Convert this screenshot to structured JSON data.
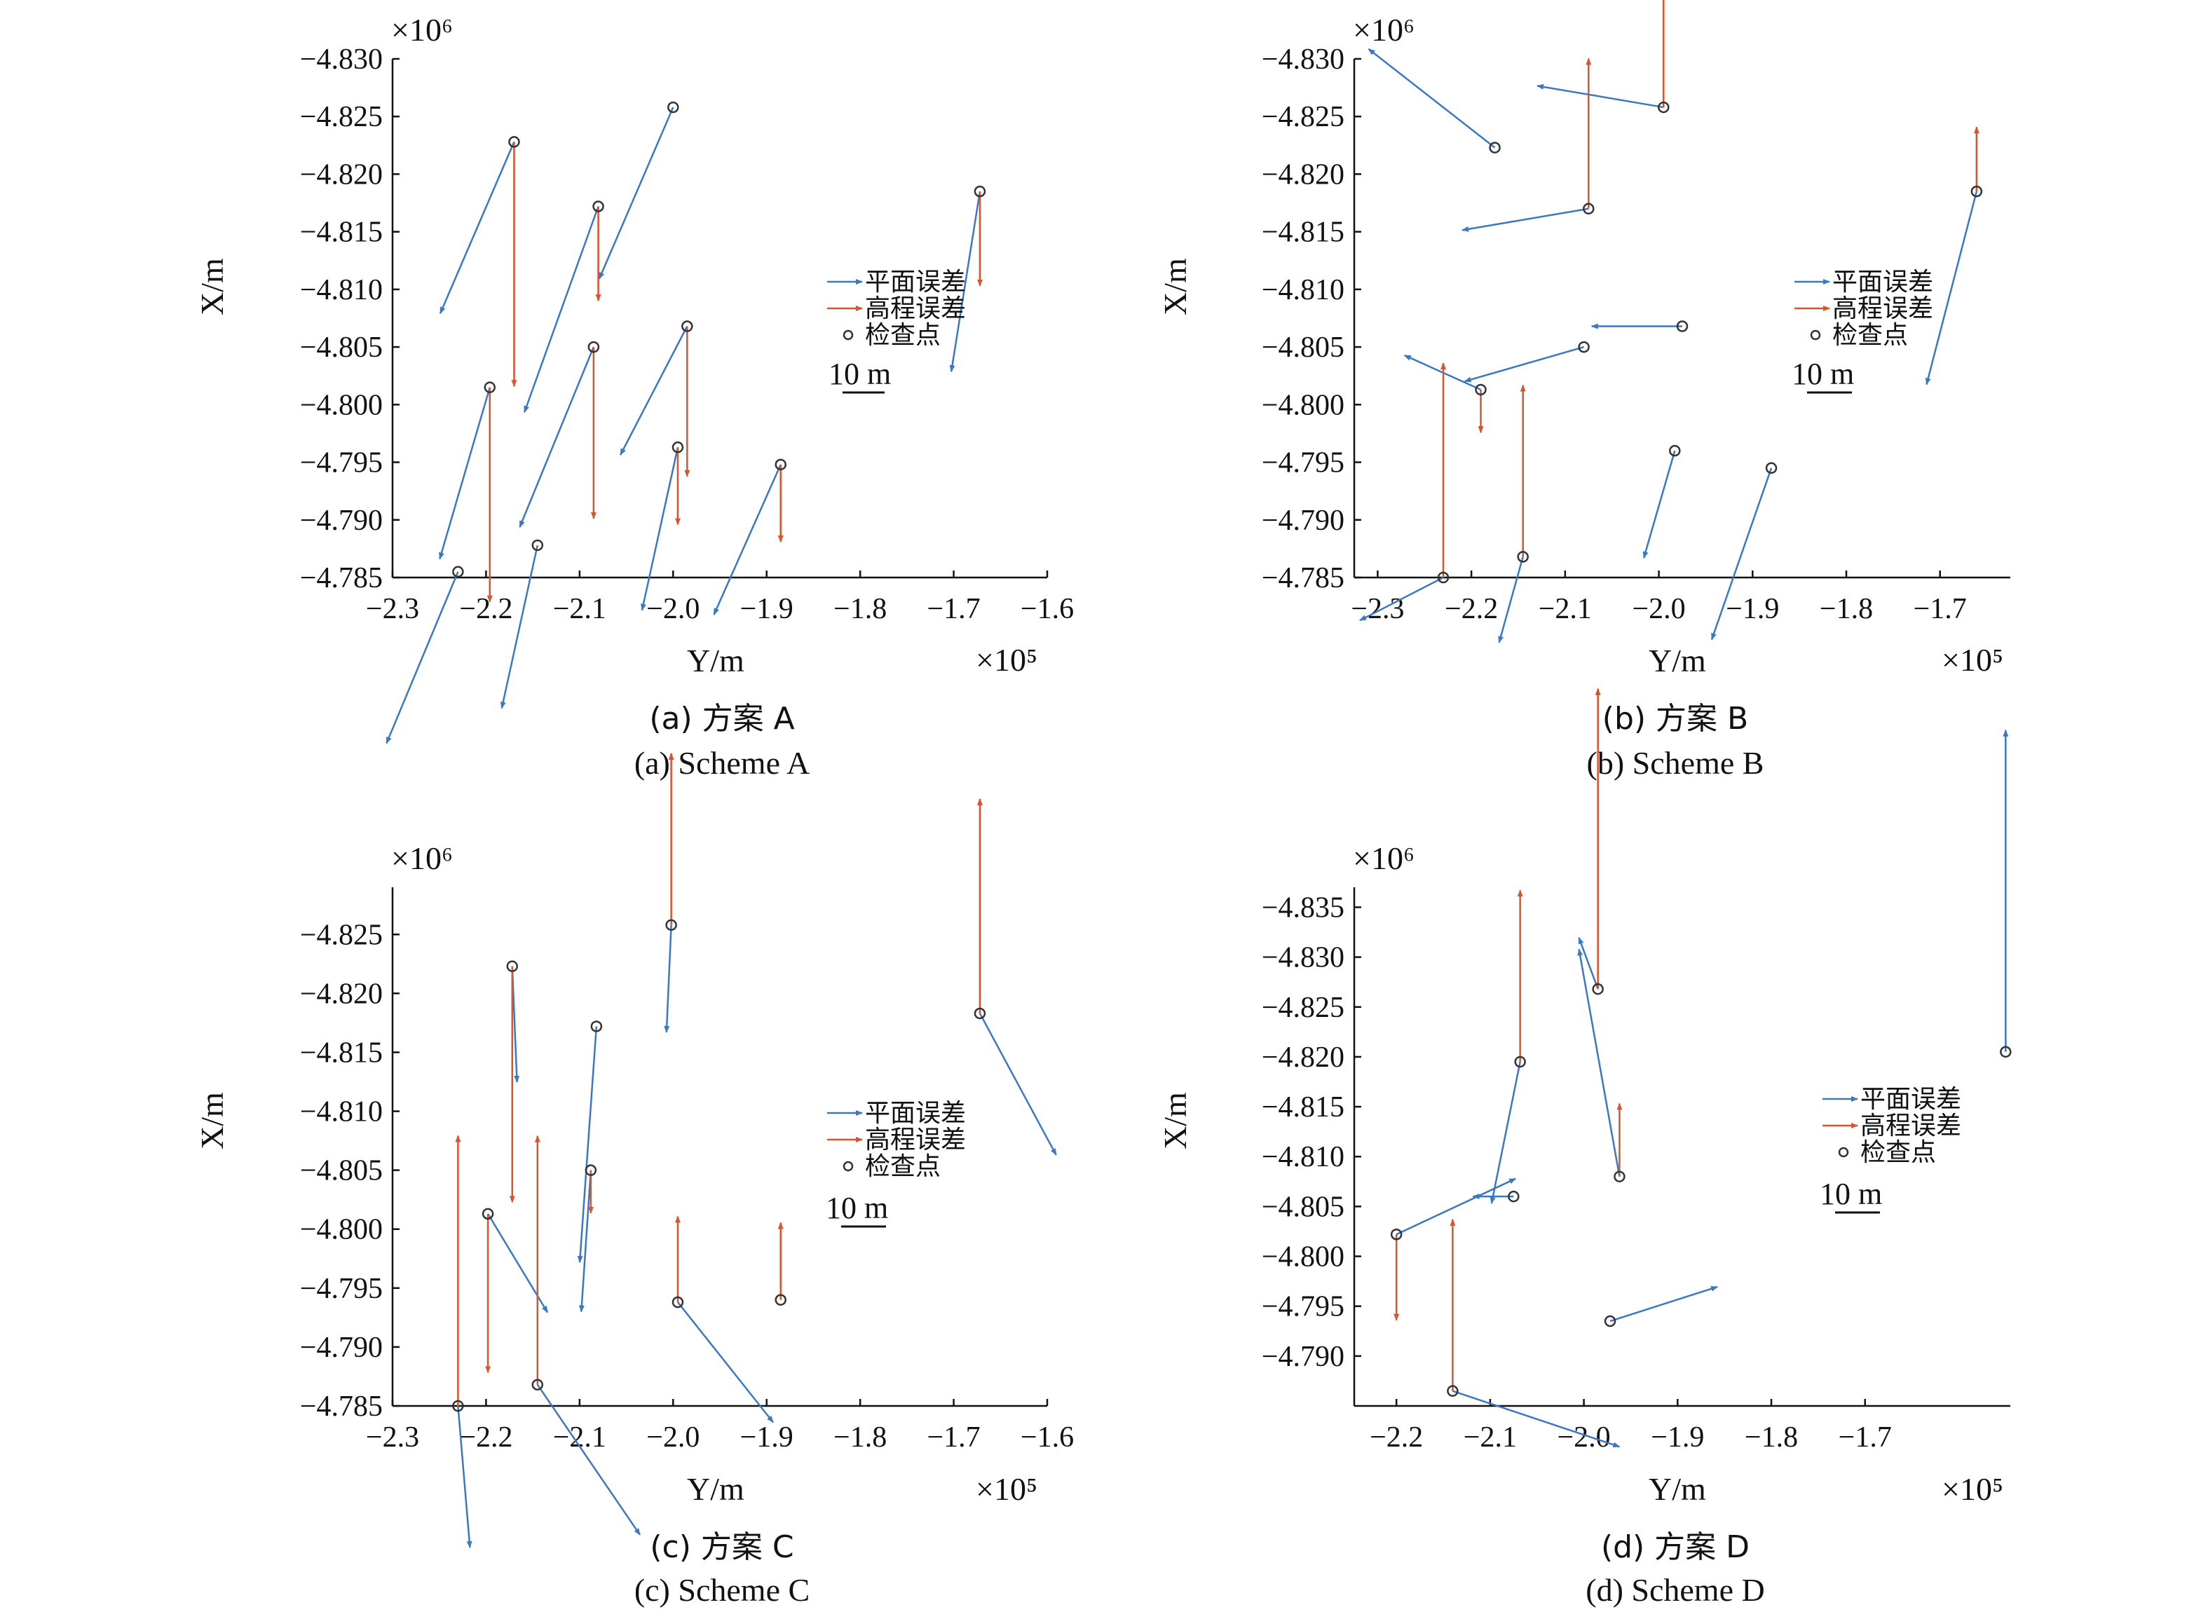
{
  "colors": {
    "planar": "#3a78c3",
    "height": "#d9532c",
    "point": "#333333",
    "axis": "#111111"
  },
  "legend": {
    "planar_label": "平面误差",
    "height_label": "高程误差",
    "point_label": "检查点"
  },
  "chart_data": [
    {
      "type": "scatter",
      "panel": "a",
      "title": "",
      "xlabel": "Y/m",
      "ylabel": "X/m",
      "x_exponent_label": "×10⁵",
      "y_exponent_label": "×10⁶",
      "xlim": [
        -2.3,
        -1.6
      ],
      "ylim": [
        -4.785,
        -4.83
      ],
      "xticks": [
        -2.3,
        -2.2,
        -2.1,
        -2.0,
        -1.9,
        -1.8,
        -1.7,
        -1.6
      ],
      "xtick_labels": [
        "−2.3",
        "−2.2",
        "−2.1",
        "−2.0",
        "−1.9",
        "−1.8",
        "−1.7",
        "−1.6"
      ],
      "yticks": [
        -4.83,
        -4.825,
        -4.82,
        -4.815,
        -4.81,
        -4.805,
        -4.8,
        -4.795,
        -4.79,
        -4.785
      ],
      "ytick_labels": [
        "−4.830",
        "−4.825",
        "−4.820",
        "−4.815",
        "−4.810",
        "−4.805",
        "−4.800",
        "−4.795",
        "−4.790",
        "−4.785"
      ],
      "scale_bar": "10 m",
      "caption_cn": "(a) 方案 A",
      "caption_en": "(a) Scheme A",
      "points": [
        {
          "x": -2.17,
          "y": -4.8228,
          "dx": -0.031,
          "dy": -0.004,
          "dh": 0.0057
        },
        {
          "x": -2.0,
          "y": -4.8258,
          "dx": -0.031,
          "dy": -0.004,
          "dh": 0.0
        },
        {
          "x": -2.08,
          "y": -4.8172,
          "dx": -0.031,
          "dy": -0.0048,
          "dh": 0.0022
        },
        {
          "x": -1.672,
          "y": -4.8185,
          "dx": -0.012,
          "dy": -0.0042,
          "dh": 0.0022
        },
        {
          "x": -2.196,
          "y": -4.8015,
          "dx": -0.021,
          "dy": -0.004,
          "dh": 0.005
        },
        {
          "x": -2.085,
          "y": -4.805,
          "dx": -0.031,
          "dy": -0.0042,
          "dh": 0.004
        },
        {
          "x": -1.985,
          "y": -4.8068,
          "dx": -0.028,
          "dy": -0.003,
          "dh": 0.0035
        },
        {
          "x": -1.995,
          "y": -4.7963,
          "dx": -0.015,
          "dy": -0.0038,
          "dh": 0.0018
        },
        {
          "x": -1.885,
          "y": -4.7948,
          "dx": -0.028,
          "dy": -0.0035,
          "dh": 0.0018
        },
        {
          "x": -2.145,
          "y": -4.7878,
          "dx": -0.015,
          "dy": -0.0038,
          "dh": 0.0
        },
        {
          "x": -2.23,
          "y": -4.7855,
          "dx": -0.03,
          "dy": -0.004,
          "dh": 0.0
        }
      ]
    },
    {
      "type": "scatter",
      "panel": "b",
      "title": "",
      "xlabel": "Y/m",
      "ylabel": "X/m",
      "x_exponent_label": "×10⁵",
      "y_exponent_label": "×10⁶",
      "xlim": [
        -2.325,
        -1.625
      ],
      "ylim": [
        -4.785,
        -4.83
      ],
      "xticks": [
        -2.3,
        -2.2,
        -2.1,
        -2.0,
        -1.9,
        -1.8,
        -1.7
      ],
      "xtick_labels": [
        "−2.3",
        "−2.2",
        "−2.1",
        "−2.0",
        "−1.9",
        "−1.8",
        "−1.7"
      ],
      "yticks": [
        -4.83,
        -4.825,
        -4.82,
        -4.815,
        -4.81,
        -4.805,
        -4.8,
        -4.795,
        -4.79,
        -4.785
      ],
      "ytick_labels": [
        "−4.830",
        "−4.825",
        "−4.820",
        "−4.815",
        "−4.810",
        "−4.805",
        "−4.800",
        "−4.795",
        "−4.790",
        "−4.785"
      ],
      "scale_bar": "10 m",
      "caption_cn": "(b) 方案 B",
      "caption_en": "(b) Scheme B",
      "points": [
        {
          "x": -2.175,
          "y": -4.8223,
          "dx": -0.053,
          "dy": 0.0023,
          "dh": 0.0
        },
        {
          "x": -1.995,
          "y": -4.8258,
          "dx": -0.053,
          "dy": 0.0005,
          "dh": -0.0058
        },
        {
          "x": -2.075,
          "y": -4.817,
          "dx": -0.053,
          "dy": -0.0005,
          "dh": -0.0035
        },
        {
          "x": -1.661,
          "y": -4.8185,
          "dx": -0.021,
          "dy": -0.0045,
          "dh": -0.0015
        },
        {
          "x": -1.975,
          "y": -4.8068,
          "dx": -0.038,
          "dy": -0.0,
          "dh": 0.0
        },
        {
          "x": -2.08,
          "y": -4.805,
          "dx": -0.05,
          "dy": -0.0008,
          "dh": 0.0
        },
        {
          "x": -2.19,
          "y": -4.8013,
          "dx": -0.032,
          "dy": 0.0008,
          "dh": 0.001
        },
        {
          "x": -1.983,
          "y": -4.796,
          "dx": -0.013,
          "dy": -0.0025,
          "dh": 0.0
        },
        {
          "x": -1.88,
          "y": -4.7945,
          "dx": -0.025,
          "dy": -0.004,
          "dh": 0.0
        },
        {
          "x": -2.145,
          "y": -4.7868,
          "dx": -0.01,
          "dy": -0.002,
          "dh": -0.004
        },
        {
          "x": -2.23,
          "y": -4.785,
          "dx": -0.035,
          "dy": -0.001,
          "dh": -0.005
        }
      ]
    },
    {
      "type": "scatter",
      "panel": "c",
      "title": "",
      "xlabel": "Y/m",
      "ylabel": "X/m",
      "x_exponent_label": "×10⁵",
      "y_exponent_label": "×10⁶",
      "xlim": [
        -2.3,
        -1.6
      ],
      "ylim": [
        -4.785,
        -4.829
      ],
      "xticks": [
        -2.3,
        -2.2,
        -2.1,
        -2.0,
        -1.9,
        -1.8,
        -1.7,
        -1.6
      ],
      "xtick_labels": [
        "−2.3",
        "−2.2",
        "−2.1",
        "−2.0",
        "−1.9",
        "−1.8",
        "−1.7",
        "−1.6"
      ],
      "yticks": [
        -4.825,
        -4.82,
        -4.815,
        -4.81,
        -4.805,
        -4.8,
        -4.795,
        -4.79,
        -4.785
      ],
      "ytick_labels": [
        "−4.825",
        "−4.820",
        "−4.815",
        "−4.810",
        "−4.805",
        "−4.800",
        "−4.795",
        "−4.790",
        "−4.785"
      ],
      "scale_bar": "10 m",
      "caption_cn": "(c) 方案 C",
      "caption_en": "(c) Scheme C",
      "points": [
        {
          "x": -2.172,
          "y": -4.8223,
          "dx": 0.002,
          "dy": -0.0027,
          "dh": 0.0055
        },
        {
          "x": -2.002,
          "y": -4.8258,
          "dx": -0.002,
          "dy": -0.0025,
          "dh": -0.004
        },
        {
          "x": -2.082,
          "y": -4.8172,
          "dx": -0.007,
          "dy": -0.0055,
          "dh": 0.0
        },
        {
          "x": -1.672,
          "y": -4.8183,
          "dx": 0.032,
          "dy": -0.0033,
          "dh": -0.005
        },
        {
          "x": -2.088,
          "y": -4.805,
          "dx": -0.004,
          "dy": -0.0033,
          "dh": 0.001
        },
        {
          "x": -2.198,
          "y": -4.8013,
          "dx": 0.025,
          "dy": -0.0023,
          "dh": 0.0037
        },
        {
          "x": -1.995,
          "y": -4.7938,
          "dx": 0.04,
          "dy": -0.0028,
          "dh": -0.002
        },
        {
          "x": -1.885,
          "y": -4.794,
          "dx": 0.0,
          "dy": 0.0,
          "dh": -0.0018
        },
        {
          "x": -2.145,
          "y": -4.7868,
          "dx": 0.043,
          "dy": -0.0035,
          "dh": -0.0058
        },
        {
          "x": -2.23,
          "y": -4.785,
          "dx": 0.005,
          "dy": -0.0033,
          "dh": -0.0063
        }
      ]
    },
    {
      "type": "scatter",
      "panel": "d",
      "title": "",
      "xlabel": "Y/m",
      "ylabel": "X/m",
      "x_exponent_label": "×10⁵",
      "y_exponent_label": "×10⁶",
      "xlim": [
        -2.245,
        -1.545
      ],
      "ylim": [
        -4.785,
        -4.837
      ],
      "xticks": [
        -2.2,
        -2.1,
        -2.0,
        -1.9,
        -1.8,
        -1.7
      ],
      "xtick_labels": [
        "−2.2",
        "−2.1",
        "−2.0",
        "−1.9",
        "−1.8",
        "−1.7"
      ],
      "yticks": [
        -4.835,
        -4.83,
        -4.825,
        -4.82,
        -4.815,
        -4.81,
        -4.805,
        -4.8,
        -4.795,
        -4.79
      ],
      "ytick_labels": [
        "−4.835",
        "−4.830",
        "−4.825",
        "−4.820",
        "−4.815",
        "−4.810",
        "−4.805",
        "−4.800",
        "−4.795",
        "−4.790"
      ],
      "scale_bar": "10 m",
      "caption_cn": "(d) 方案 D",
      "caption_en": "(d) Scheme D",
      "points": [
        {
          "x": -1.985,
          "y": -4.8268,
          "dx": -0.008,
          "dy": 0.0012,
          "dh": -0.007
        },
        {
          "x": -2.068,
          "y": -4.8195,
          "dx": -0.012,
          "dy": -0.0033,
          "dh": -0.004
        },
        {
          "x": -1.55,
          "y": -4.8205,
          "dx": 0.0,
          "dy": 0.0075,
          "dh": 0.0
        },
        {
          "x": -2.075,
          "y": -4.806,
          "dx": -0.017,
          "dy": 0.0,
          "dh": 0.0
        },
        {
          "x": -1.962,
          "y": -4.808,
          "dx": -0.017,
          "dy": 0.0053,
          "dh": -0.0017
        },
        {
          "x": -2.2,
          "y": -4.8022,
          "dx": 0.05,
          "dy": 0.0013,
          "dh": 0.002
        },
        {
          "x": -1.972,
          "y": -4.7935,
          "dx": 0.045,
          "dy": 0.0008,
          "dh": 0.0
        },
        {
          "x": -2.14,
          "y": -4.7865,
          "dx": 0.07,
          "dy": -0.0013,
          "dh": -0.004
        }
      ]
    }
  ]
}
